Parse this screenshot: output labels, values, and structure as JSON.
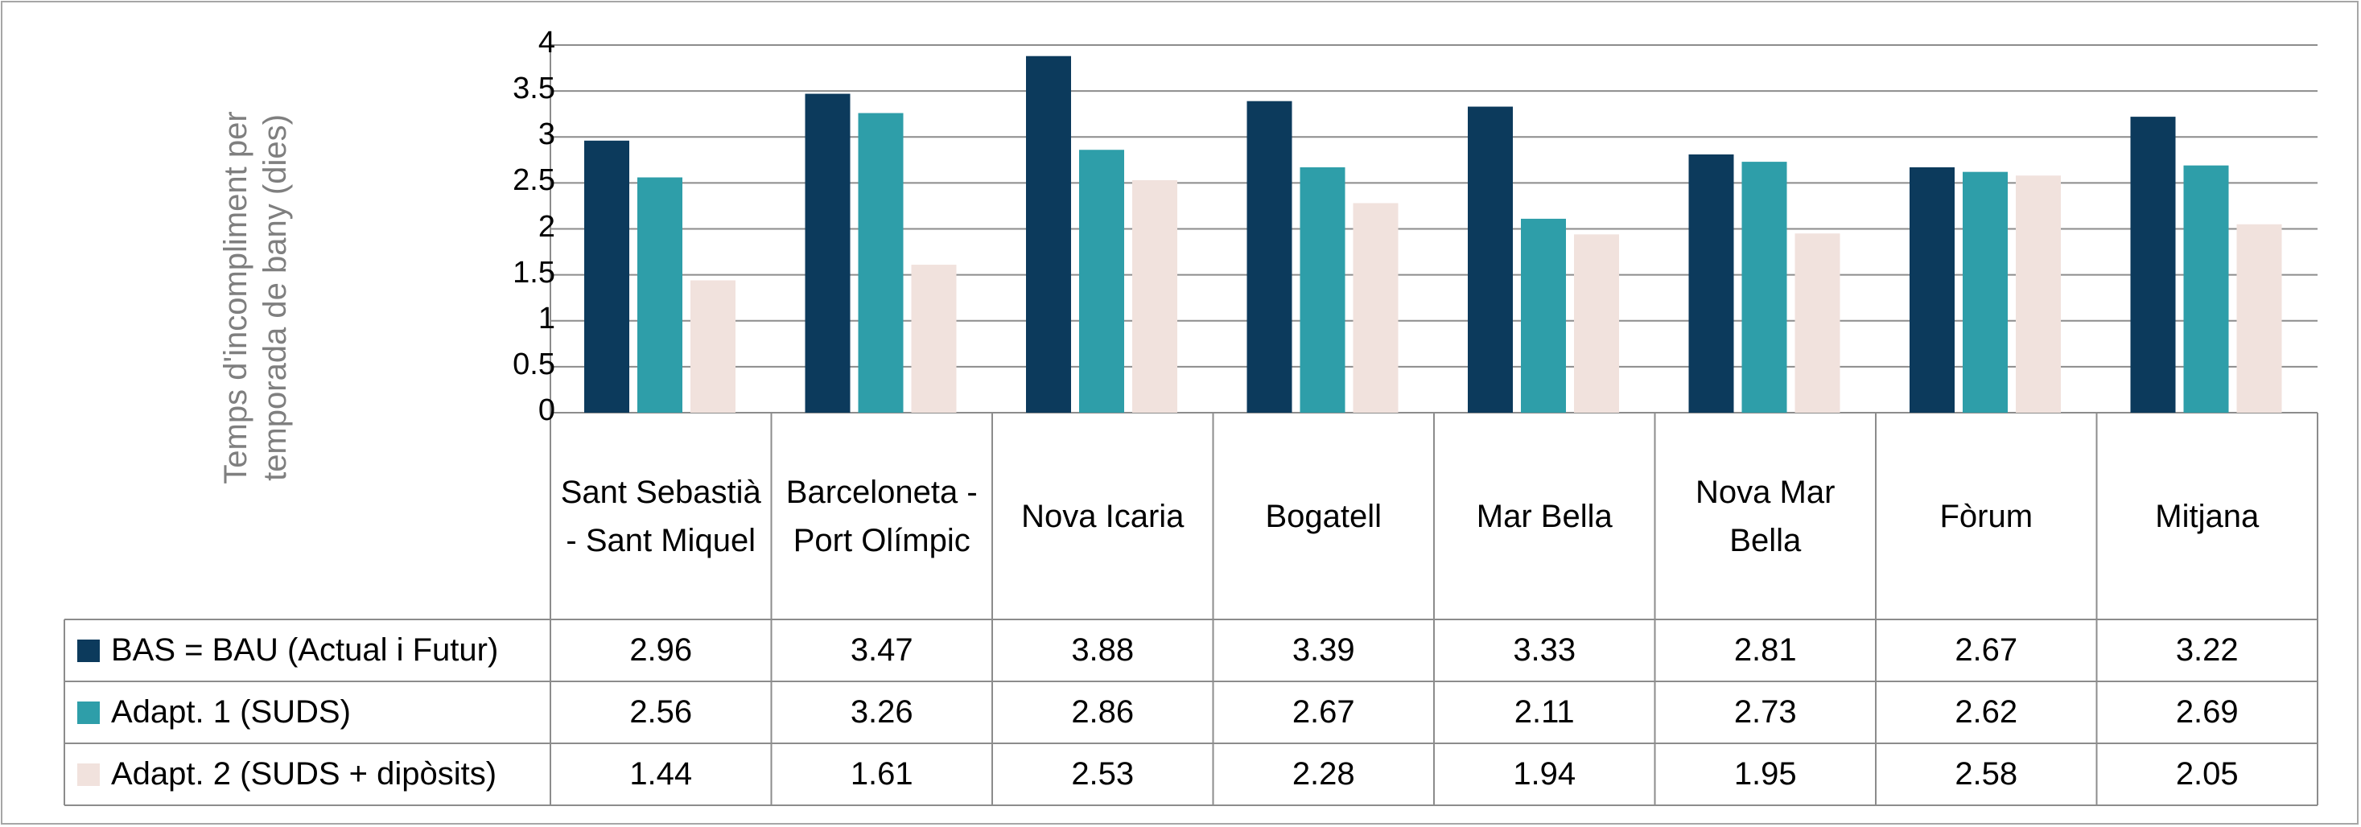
{
  "chart_data": {
    "type": "bar",
    "ylabel": "Temps d'incompliment per temporada de bany (dies)",
    "ylim": [
      0,
      4
    ],
    "yticks": [
      "0",
      "0.5",
      "1",
      "1.5",
      "2",
      "2.5",
      "3",
      "3.5",
      "4"
    ],
    "grid": true,
    "legend_placement": "data-table-left",
    "categories": [
      "Sant Sebastià - Sant Miquel",
      "Barceloneta - Port Olímpic",
      "Nova Icaria",
      "Bogatell",
      "Mar Bella",
      "Nova Mar Bella",
      "Fòrum",
      "Mitjana"
    ],
    "series": [
      {
        "name": "BAS = BAU (Actual i Futur)",
        "color": "#0c3a5c",
        "values": [
          2.96,
          3.47,
          3.88,
          3.39,
          3.33,
          2.81,
          2.67,
          3.22
        ],
        "labels": [
          "2.96",
          "3.47",
          "3.88",
          "3.39",
          "3.33",
          "2.81",
          "2.67",
          "3.22"
        ]
      },
      {
        "name": "Adapt. 1 (SUDS)",
        "color": "#2e9ea9",
        "values": [
          2.56,
          3.26,
          2.86,
          2.67,
          2.11,
          2.73,
          2.62,
          2.69
        ],
        "labels": [
          "2.56",
          "3.26",
          "2.86",
          "2.67",
          "2.11",
          "2.73",
          "2.62",
          "2.69"
        ]
      },
      {
        "name": "Adapt. 2 (SUDS + dipòsits)",
        "color": "#f1e2dd",
        "values": [
          1.44,
          1.61,
          2.53,
          2.28,
          1.94,
          1.95,
          2.58,
          2.05
        ],
        "labels": [
          "1.44",
          "1.61",
          "2.53",
          "2.28",
          "1.94",
          "1.95",
          "2.58",
          "2.05"
        ]
      }
    ]
  }
}
